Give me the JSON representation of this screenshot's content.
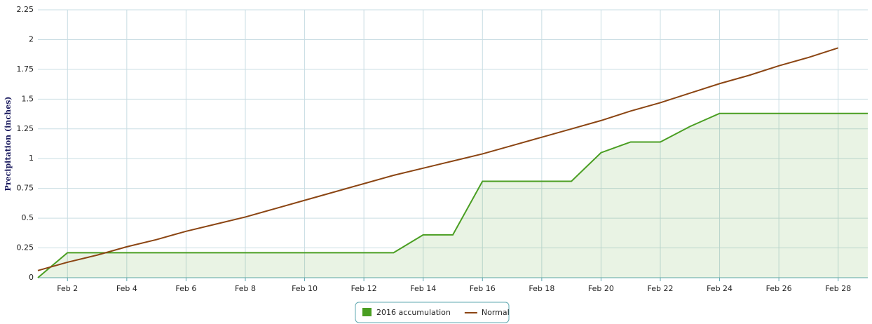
{
  "chart_data": {
    "type": "line",
    "y_label": "Precipitation (inches)",
    "categories": [
      null,
      "Feb 2",
      null,
      "Feb 4",
      null,
      "Feb 6",
      null,
      "Feb 8",
      null,
      "Feb 10",
      null,
      "Feb 12",
      null,
      "Feb 14",
      null,
      "Feb 16",
      null,
      "Feb 18",
      null,
      "Feb 20",
      null,
      "Feb 22",
      null,
      "Feb 24",
      null,
      "Feb 26",
      null,
      "Feb 28",
      null
    ],
    "series": [
      {
        "name": "2016 accumulation",
        "type": "area",
        "color": "#4a9e22",
        "values": [
          0,
          0.21,
          0.21,
          0.21,
          0.21,
          0.21,
          0.21,
          0.21,
          0.21,
          0.21,
          0.21,
          0.21,
          0.21,
          0.36,
          0.36,
          0.81,
          0.81,
          0.81,
          0.81,
          1.05,
          1.14,
          1.14,
          1.27,
          1.38,
          1.38,
          1.38,
          1.38,
          1.38,
          1.38
        ]
      },
      {
        "name": "Normal",
        "type": "line",
        "color": "#8b4513",
        "values": [
          0.06,
          0.13,
          0.19,
          0.26,
          0.32,
          0.39,
          0.45,
          0.51,
          0.58,
          0.65,
          0.72,
          0.79,
          0.86,
          0.92,
          0.98,
          1.04,
          1.11,
          1.18,
          1.25,
          1.32,
          1.4,
          1.47,
          1.55,
          1.63,
          1.7,
          1.78,
          1.85,
          1.93,
          null
        ]
      }
    ],
    "ylim": [
      0,
      2.25
    ],
    "yticks": [
      0,
      0.25,
      0.5,
      0.75,
      1,
      1.25,
      1.5,
      1.75,
      2,
      2.25
    ],
    "grid": true,
    "legend": "bottom"
  }
}
